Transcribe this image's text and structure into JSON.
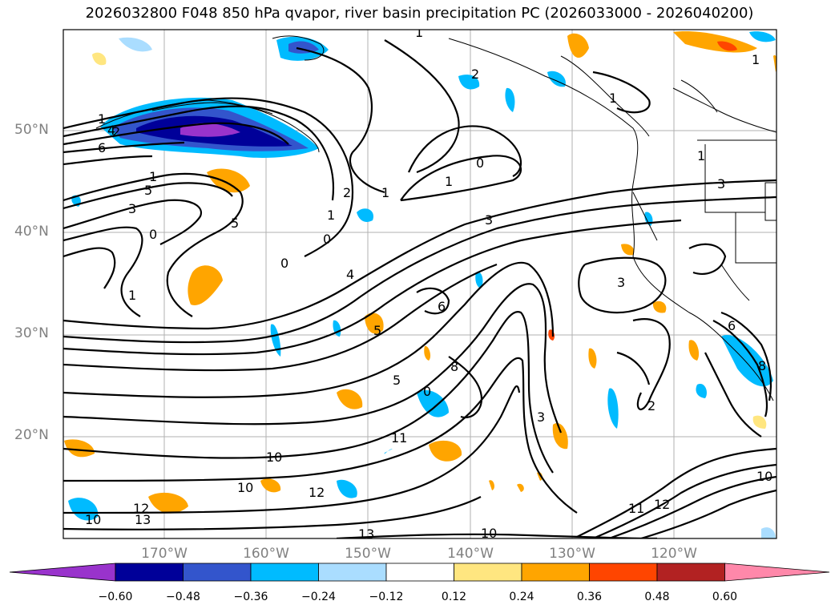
{
  "title": "2026032800 F048 850 hPa qvapor, river basin precipitation PC (2026033000 - 2026040200)",
  "map": {
    "lat_labels": [
      "50°N",
      "40°N",
      "30°N",
      "20°N"
    ],
    "lon_labels": [
      "170°W",
      "160°W",
      "150°W",
      "140°W",
      "130°W",
      "120°W"
    ],
    "contour_labels": [
      "1",
      "2",
      "4",
      "6",
      "1",
      "3",
      "5",
      "0",
      "1",
      "5",
      "0",
      "0",
      "2",
      "1",
      "1",
      "0",
      "1",
      "3",
      "4",
      "6",
      "5",
      "0",
      "8",
      "5",
      "11",
      "10",
      "10",
      "12",
      "12",
      "10",
      "13",
      "10",
      "13",
      "3",
      "1",
      "1",
      "3",
      "2",
      "1",
      "6",
      "8",
      "10",
      "12",
      "11",
      "3",
      "1",
      "2"
    ],
    "colors": {
      "land_outline": "#000000",
      "grid": "#b0b0b0",
      "contour": "#000000"
    }
  },
  "colorbar": {
    "ticks": [
      "−0.60",
      "−0.48",
      "−0.36",
      "−0.24",
      "−0.12",
      "0.12",
      "0.24",
      "0.36",
      "0.48",
      "0.60"
    ],
    "colors": [
      "#9933cc",
      "#000099",
      "#3355cc",
      "#00bbff",
      "#aaddff",
      "#ffffff",
      "#ffe680",
      "#ffa500",
      "#ff4500",
      "#b22222",
      "#ff88aa"
    ]
  }
}
